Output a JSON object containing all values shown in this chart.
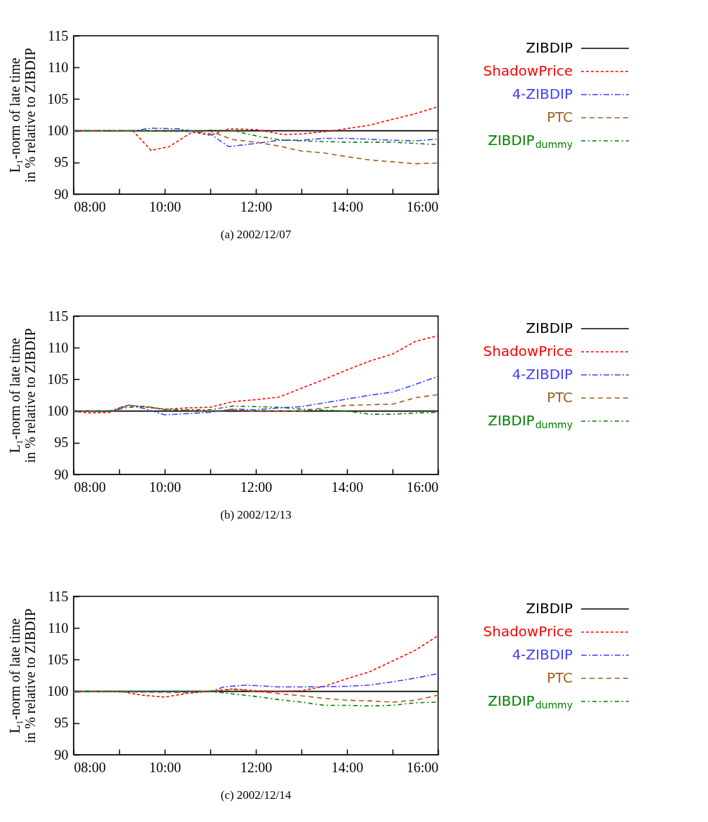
{
  "chart_data": [
    {
      "type": "line",
      "title": "(a) 2002/12/07",
      "ylabel": "L₁-norm of late time in % relative to ZIBDIP",
      "xlim": [
        8,
        16
      ],
      "xticks": [
        {
          "value": 8,
          "label": "08:00"
        },
        {
          "value": 9,
          "label": null
        },
        {
          "value": 10,
          "label": "10:00"
        },
        {
          "value": 11,
          "label": null
        },
        {
          "value": 12,
          "label": "12:00"
        },
        {
          "value": 13,
          "label": null
        },
        {
          "value": 14,
          "label": "14:00"
        },
        {
          "value": 15,
          "label": null
        },
        {
          "value": 16,
          "label": "16:00"
        }
      ],
      "ylim": [
        90,
        115
      ],
      "yticks": [
        90,
        95,
        100,
        105,
        110,
        115
      ],
      "legend": "right",
      "series": [
        {
          "name": "ZIBDIP",
          "color": "#000000",
          "line_style": "solid",
          "x": [
            8,
            16
          ],
          "values": [
            100,
            100
          ]
        },
        {
          "name": "ShadowPrice",
          "color": "#ff0000",
          "line_style": "dashed",
          "x": [
            8,
            9,
            9.3,
            9.7,
            10.1,
            10.6,
            11,
            11.4,
            12,
            12.6,
            13,
            13.7,
            14.5,
            15,
            15.5,
            16
          ],
          "values": [
            100,
            100,
            100,
            96.9,
            97.5,
            99.8,
            99.3,
            100.3,
            100.2,
            99.4,
            99.5,
            100,
            100.9,
            101.8,
            102.7,
            103.8
          ]
        },
        {
          "name": "4-ZIBDIP",
          "color": "#4040ff",
          "line_style": "dashed",
          "x": [
            8,
            9.3,
            9.7,
            10.3,
            11,
            11.4,
            12,
            12.5,
            13,
            13.5,
            14,
            15,
            15.5,
            16
          ],
          "values": [
            100,
            100,
            100.4,
            100.3,
            99.5,
            97.5,
            98,
            98.5,
            98.5,
            98.8,
            98.8,
            98.5,
            98.4,
            98.7
          ]
        },
        {
          "name": "PTC",
          "color": "#a0601e",
          "line_style": "dashed",
          "x": [
            8,
            11,
            11.5,
            12,
            12.5,
            13,
            13.5,
            14,
            14.5,
            15,
            15.5,
            16
          ],
          "values": [
            100,
            99.9,
            98.6,
            98.2,
            97.6,
            96.8,
            96.5,
            95.9,
            95.4,
            95.1,
            94.8,
            94.9
          ]
        },
        {
          "name": "ZIBDIP$_{dummy}$",
          "color": "#008000",
          "line_style": "dashed",
          "x": [
            8,
            10.5,
            11,
            11.5,
            12,
            12.5,
            13,
            14,
            15,
            16
          ],
          "values": [
            100,
            99.9,
            100.1,
            100,
            99.2,
            98.6,
            98.4,
            98.2,
            98.2,
            97.8
          ]
        }
      ]
    },
    {
      "type": "line",
      "title": "(b) 2002/12/13",
      "ylabel": "L₁-norm of late time in % relative to ZIBDIP",
      "xlim": [
        8,
        16
      ],
      "xticks": [
        {
          "value": 8,
          "label": "08:00"
        },
        {
          "value": 9,
          "label": null
        },
        {
          "value": 10,
          "label": "10:00"
        },
        {
          "value": 11,
          "label": null
        },
        {
          "value": 12,
          "label": "12:00"
        },
        {
          "value": 13,
          "label": null
        },
        {
          "value": 14,
          "label": "14:00"
        },
        {
          "value": 15,
          "label": null
        },
        {
          "value": 16,
          "label": "16:00"
        }
      ],
      "ylim": [
        90,
        115
      ],
      "yticks": [
        90,
        95,
        100,
        105,
        110,
        115
      ],
      "legend": "right",
      "series": [
        {
          "name": "ZIBDIP",
          "color": "#000000",
          "line_style": "solid",
          "x": [
            8,
            16
          ],
          "values": [
            100,
            100
          ]
        },
        {
          "name": "ShadowPrice",
          "color": "#ff0000",
          "line_style": "dashed",
          "x": [
            8,
            8.3,
            8.8,
            9.2,
            9.5,
            10,
            10.5,
            11,
            11.5,
            12,
            12.5,
            13,
            13.5,
            14,
            14.5,
            15,
            15.5,
            16
          ],
          "values": [
            100,
            99.7,
            99.8,
            100.9,
            100.7,
            100.3,
            100.5,
            100.6,
            101.5,
            101.8,
            102.2,
            103.6,
            105,
            106.5,
            107.9,
            109,
            111,
            111.9
          ]
        },
        {
          "name": "4-ZIBDIP",
          "color": "#4040ff",
          "line_style": "dashed",
          "x": [
            8,
            8.8,
            9.2,
            9.6,
            10,
            10.5,
            11,
            11.5,
            12,
            12.5,
            13,
            13.5,
            14,
            14.5,
            15,
            15.5,
            16
          ],
          "values": [
            100,
            100,
            101,
            100.3,
            99.4,
            99.6,
            99.8,
            100.3,
            100.2,
            100.5,
            100.7,
            101.3,
            101.9,
            102.5,
            103,
            104.2,
            105.5
          ]
        },
        {
          "name": "PTC",
          "color": "#a0601e",
          "line_style": "dashed",
          "x": [
            8,
            8.8,
            9.2,
            9.6,
            10,
            10.5,
            11,
            11.5,
            12,
            13,
            13.5,
            14,
            15,
            15.5,
            16
          ],
          "values": [
            100,
            99.9,
            100.9,
            100.7,
            100.3,
            100.1,
            100,
            100.2,
            100,
            100,
            100.5,
            100.9,
            101.1,
            102.1,
            102.6
          ]
        },
        {
          "name": "ZIBDIP$_{dummy}$",
          "color": "#008000",
          "line_style": "dashed",
          "x": [
            8,
            8.8,
            9.2,
            9.6,
            10,
            11,
            11.5,
            12,
            12.5,
            13,
            14,
            14.5,
            15,
            15.5,
            16
          ],
          "values": [
            100,
            100,
            100.6,
            100.7,
            100.2,
            100.2,
            100.8,
            100.7,
            100.6,
            100.3,
            100,
            99.5,
            99.5,
            99.7,
            99.8
          ]
        }
      ]
    },
    {
      "type": "line",
      "title": "(c) 2002/12/14",
      "ylabel": "L₁-norm of late time in % relative to ZIBDIP",
      "xlim": [
        8,
        16
      ],
      "xticks": [
        {
          "value": 8,
          "label": "08:00"
        },
        {
          "value": 9,
          "label": null
        },
        {
          "value": 10,
          "label": "10:00"
        },
        {
          "value": 11,
          "label": null
        },
        {
          "value": 12,
          "label": "12:00"
        },
        {
          "value": 13,
          "label": null
        },
        {
          "value": 14,
          "label": "14:00"
        },
        {
          "value": 15,
          "label": null
        },
        {
          "value": 16,
          "label": "16:00"
        }
      ],
      "ylim": [
        90,
        115
      ],
      "yticks": [
        90,
        95,
        100,
        105,
        110,
        115
      ],
      "legend": "right",
      "series": [
        {
          "name": "ZIBDIP",
          "color": "#000000",
          "line_style": "solid",
          "x": [
            8,
            16
          ],
          "values": [
            100,
            100
          ]
        },
        {
          "name": "ShadowPrice",
          "color": "#ff0000",
          "line_style": "dashed",
          "x": [
            8,
            9,
            9.5,
            10,
            10.5,
            11,
            11.5,
            12,
            12.5,
            13,
            13.5,
            14,
            14.5,
            15,
            15.5,
            16
          ],
          "values": [
            100,
            100,
            99.4,
            99.1,
            99.7,
            100,
            100.4,
            100.1,
            100,
            100.1,
            100.8,
            102,
            103.1,
            104.8,
            106.5,
            108.8
          ]
        },
        {
          "name": "4-ZIBDIP",
          "color": "#4040ff",
          "line_style": "dashed",
          "x": [
            8,
            11,
            11.3,
            11.8,
            12.5,
            13,
            14,
            14.5,
            15,
            15.5,
            16
          ],
          "values": [
            100,
            100,
            100.7,
            101,
            100.7,
            100.7,
            100.8,
            101,
            101.5,
            102.1,
            102.8
          ]
        },
        {
          "name": "PTC",
          "color": "#a0601e",
          "line_style": "dashed",
          "x": [
            8,
            10.5,
            11,
            11.5,
            12,
            13,
            13.5,
            14,
            14.5,
            15,
            15.5,
            16
          ],
          "values": [
            100,
            99.8,
            100,
            100.3,
            100,
            99.3,
            98.9,
            98.6,
            98.5,
            98.3,
            98.6,
            99.4
          ]
        },
        {
          "name": "ZIBDIP$_{dummy}$",
          "color": "#008000",
          "line_style": "dashed",
          "x": [
            8,
            11,
            11.5,
            12,
            12.5,
            13,
            13.5,
            14,
            14.5,
            15,
            15.5,
            16
          ],
          "values": [
            100,
            100,
            99.6,
            99.2,
            98.7,
            98.3,
            97.8,
            97.8,
            97.7,
            97.8,
            98.2,
            98.3
          ]
        }
      ]
    }
  ]
}
